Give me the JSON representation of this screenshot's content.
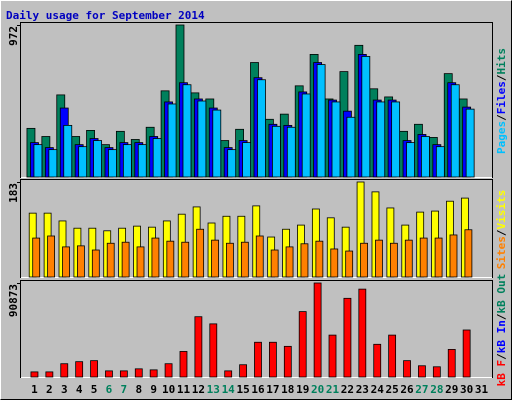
{
  "chart_data": [
    {
      "type": "bar",
      "title": "Daily usage for September 2014",
      "ylim": [
        0,
        972
      ],
      "yticks": [
        972
      ],
      "series": [
        {
          "name": "Hits",
          "color": "#00805c",
          "values": [
            311,
            259,
            525,
            259,
            298,
            207,
            292,
            240,
            318,
            551,
            972,
            538,
            499,
            233,
            305,
            732,
            369,
            402,
            583,
            784,
            499,
            674,
            842,
            564,
            512,
            292,
            337,
            253,
            661,
            499,
            null
          ]
        },
        {
          "name": "Files",
          "color": "#0000ff",
          "values": [
            220,
            188,
            441,
            207,
            246,
            188,
            220,
            220,
            259,
            480,
            603,
            499,
            441,
            188,
            233,
            635,
            337,
            330,
            544,
            732,
            492,
            421,
            784,
            492,
            492,
            233,
            272,
            207,
            603,
            447,
            null
          ]
        },
        {
          "name": "Pages",
          "color": "#00c0ff",
          "values": [
            207,
            175,
            330,
            194,
            233,
            175,
            207,
            207,
            246,
            467,
            590,
            486,
            428,
            175,
            220,
            622,
            324,
            318,
            531,
            719,
            480,
            382,
            771,
            480,
            480,
            220,
            259,
            194,
            590,
            434,
            null
          ]
        }
      ],
      "legend_separator": "/"
    },
    {
      "type": "bar",
      "ylim": [
        0,
        183
      ],
      "yticks": [
        183
      ],
      "series": [
        {
          "name": "Visits",
          "color": "#ffff00",
          "values": [
            123,
            123,
            108,
            94,
            94,
            89,
            94,
            98,
            96,
            108,
            121,
            135,
            104,
            117,
            117,
            137,
            77,
            92,
            100,
            131,
            114,
            96,
            183,
            164,
            133,
            100,
            125,
            127,
            146,
            152,
            null
          ]
        },
        {
          "name": "Sites",
          "color": "#ff8000",
          "values": [
            75,
            79,
            58,
            60,
            52,
            65,
            67,
            58,
            75,
            69,
            67,
            92,
            71,
            65,
            67,
            79,
            52,
            58,
            64,
            69,
            54,
            50,
            65,
            71,
            65,
            71,
            75,
            75,
            81,
            91,
            null
          ]
        }
      ],
      "legend_separator": "/"
    },
    {
      "type": "bar",
      "ylim": [
        0,
        90873
      ],
      "yticks": [
        90873
      ],
      "categories": [
        "1",
        "2",
        "3",
        "4",
        "5",
        "6",
        "7",
        "8",
        "9",
        "10",
        "11",
        "12",
        "13",
        "14",
        "15",
        "16",
        "17",
        "18",
        "19",
        "20",
        "21",
        "22",
        "23",
        "24",
        "25",
        "26",
        "27",
        "28",
        "29",
        "30",
        "31"
      ],
      "category_colors": [
        "#000000",
        "#000000",
        "#000000",
        "#000000",
        "#000000",
        "#00805c",
        "#00805c",
        "#000000",
        "#000000",
        "#000000",
        "#000000",
        "#000000",
        "#00805c",
        "#00805c",
        "#000000",
        "#000000",
        "#000000",
        "#000000",
        "#000000",
        "#00805c",
        "#00805c",
        "#000000",
        "#000000",
        "#000000",
        "#000000",
        "#000000",
        "#00805c",
        "#00805c",
        "#000000",
        "#000000",
        "#000000"
      ],
      "series": [
        {
          "name": "kB F",
          "color": "#ff0000",
          "values": [
            4939,
            4939,
            12841,
            14817,
            15805,
            5927,
            5927,
            7902,
            6915,
            12841,
            24695,
            58280,
            51366,
            5927,
            11854,
            33585,
            33585,
            29634,
            63219,
            90873,
            40500,
            76061,
            84951,
            31610,
            40500,
            15805,
            10866,
            9878,
            26671,
            45439,
            null
          ]
        }
      ],
      "legend_entries": [
        {
          "name": "kB In",
          "color": "#0000ff"
        },
        {
          "name": "kB Out",
          "color": "#00805c"
        }
      ],
      "legend_separator": "/"
    }
  ]
}
